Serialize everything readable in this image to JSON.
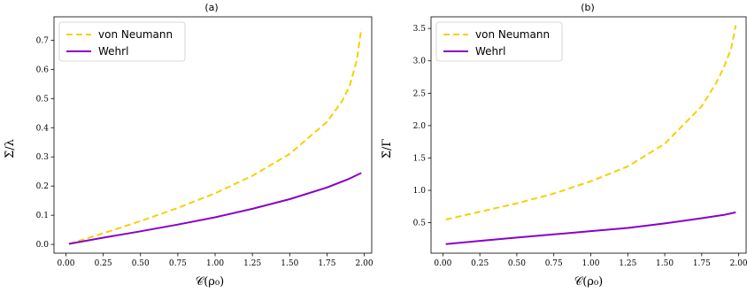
{
  "chart_data": [
    {
      "type": "line",
      "title": "(a)",
      "xlabel": "𝒞(ρ₀)",
      "ylabel": "Σ̇/λ",
      "xlim": [
        -0.08,
        2.05
      ],
      "ylim": [
        -0.03,
        0.78
      ],
      "xticks": [
        "0.00",
        "0.25",
        "0.50",
        "0.75",
        "1.00",
        "1.25",
        "1.50",
        "1.75",
        "2.00"
      ],
      "yticks": [
        "0.0",
        "0.1",
        "0.2",
        "0.3",
        "0.4",
        "0.5",
        "0.6",
        "0.7"
      ],
      "legend_position": "top-left",
      "grid": false,
      "series": [
        {
          "name": "von Neumann",
          "color": "#f5d000",
          "style": "dashed",
          "x": [
            0.02,
            0.25,
            0.5,
            0.75,
            1.0,
            1.25,
            1.5,
            1.75,
            1.85,
            1.9,
            1.95,
            1.98
          ],
          "y": [
            0.002,
            0.038,
            0.08,
            0.125,
            0.175,
            0.235,
            0.31,
            0.42,
            0.49,
            0.54,
            0.63,
            0.74
          ]
        },
        {
          "name": "Wehrl",
          "color": "#8800cc",
          "style": "solid",
          "x": [
            0.02,
            0.25,
            0.5,
            0.75,
            1.0,
            1.25,
            1.5,
            1.75,
            1.9,
            1.98
          ],
          "y": [
            0.002,
            0.023,
            0.045,
            0.068,
            0.093,
            0.122,
            0.155,
            0.195,
            0.225,
            0.245
          ]
        }
      ]
    },
    {
      "type": "line",
      "title": "(b)",
      "xlabel": "𝒞(ρ₀)",
      "ylabel": "Σ̇/Γ",
      "xlim": [
        -0.08,
        2.05
      ],
      "ylim": [
        0.03,
        3.68
      ],
      "xticks": [
        "0.00",
        "0.25",
        "0.50",
        "0.75",
        "1.00",
        "1.25",
        "1.50",
        "1.75",
        "2.00"
      ],
      "yticks": [
        "0.5",
        "1.0",
        "1.5",
        "2.0",
        "2.5",
        "3.0",
        "3.5"
      ],
      "legend_position": "top-left",
      "grid": false,
      "series": [
        {
          "name": "von Neumann",
          "color": "#f5d000",
          "style": "dashed",
          "x": [
            0.02,
            0.25,
            0.5,
            0.75,
            1.0,
            1.25,
            1.5,
            1.75,
            1.85,
            1.9,
            1.95,
            1.98
          ],
          "y": [
            0.55,
            0.67,
            0.8,
            0.95,
            1.14,
            1.37,
            1.72,
            2.3,
            2.67,
            2.9,
            3.2,
            3.55
          ]
        },
        {
          "name": "Wehrl",
          "color": "#8800cc",
          "style": "solid",
          "x": [
            0.02,
            0.25,
            0.5,
            0.75,
            1.0,
            1.25,
            1.5,
            1.75,
            1.9,
            1.98
          ],
          "y": [
            0.17,
            0.22,
            0.27,
            0.32,
            0.37,
            0.42,
            0.49,
            0.57,
            0.62,
            0.66
          ]
        }
      ]
    }
  ]
}
